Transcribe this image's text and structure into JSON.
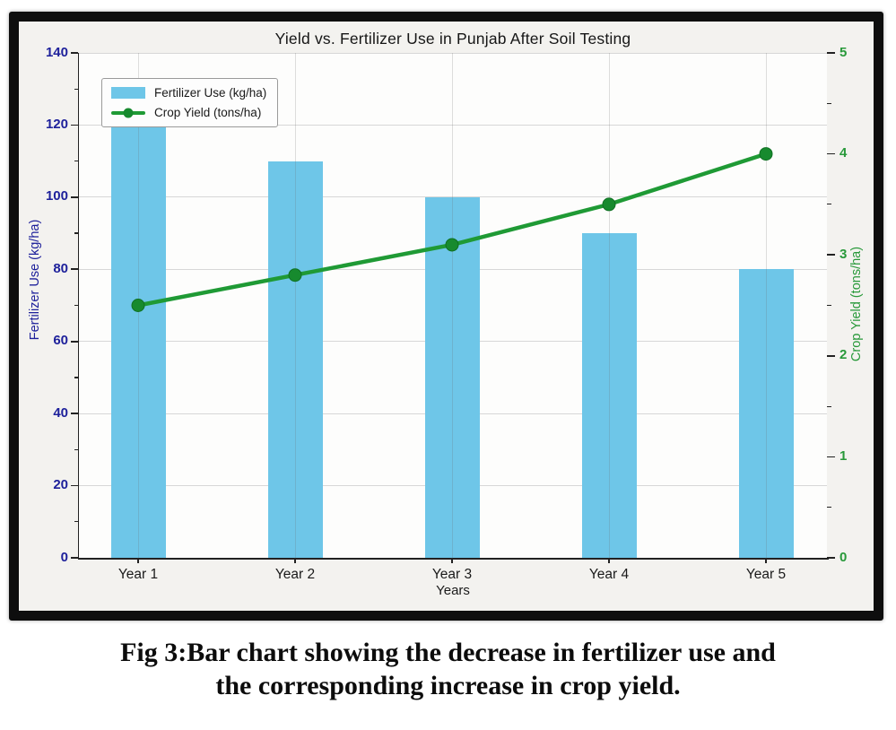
{
  "chart_data": {
    "type": "bar+line",
    "title": "Yield vs. Fertilizer Use in Punjab After Soil Testing",
    "categories": [
      "Year 1",
      "Year 2",
      "Year 3",
      "Year 4",
      "Year 5"
    ],
    "xlabel": "Years",
    "series": [
      {
        "name": "Fertilizer Use (kg/ha)",
        "type": "bar",
        "axis": "left",
        "color": "#6ec6e8",
        "values": [
          120,
          110,
          100,
          90,
          80
        ]
      },
      {
        "name": "Crop Yield (tons/ha)",
        "type": "line",
        "axis": "right",
        "color": "#1f9a35",
        "marker_color": "#178a2e",
        "values": [
          2.5,
          2.8,
          3.1,
          3.5,
          4.0
        ]
      }
    ],
    "left_axis": {
      "label": "Fertilizer Use (kg/ha)",
      "min": 0,
      "max": 140,
      "ticks": [
        0,
        20,
        40,
        60,
        80,
        100,
        120,
        140
      ],
      "minor_step": 10,
      "color": "#1e219b"
    },
    "right_axis": {
      "label": "Crop Yield (tons/ha)",
      "min": 0,
      "max": 5,
      "ticks": [
        0,
        1,
        2,
        3,
        4,
        5
      ],
      "minor_step": 0.5,
      "color": "#28993a"
    },
    "grid": true,
    "legend_position": "upper-left"
  },
  "caption": {
    "line1": "Fig 3:Bar chart showing the decrease in fertilizer use and",
    "line2": "the corresponding increase in crop yield."
  }
}
